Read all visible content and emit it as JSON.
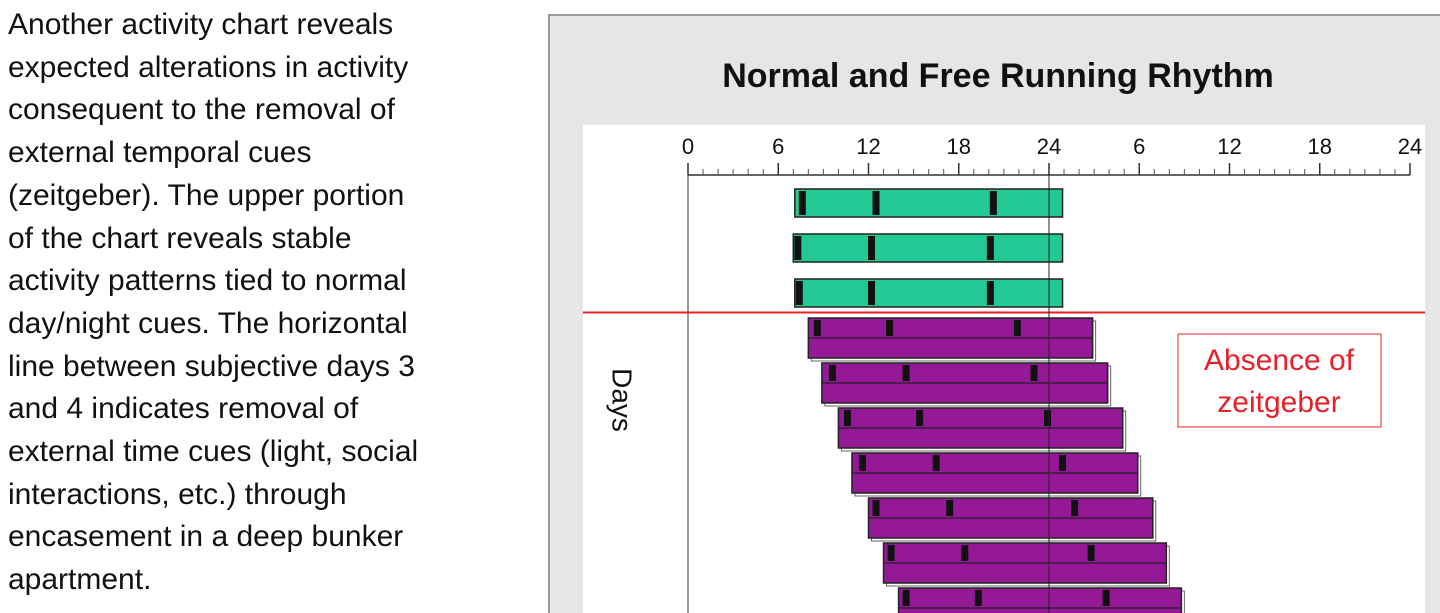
{
  "text": {
    "lines": [
      "Another activity chart reveals",
      "expected alterations in activity",
      "consequent to the removal of",
      "external temporal cues",
      "(zeitgeber). The upper portion",
      "of the chart reveals stable",
      "activity patterns tied to normal",
      "day/night cues. The horizontal",
      "line between subjective days 3",
      "and 4 indicates removal of",
      "external time cues (light, social",
      "interactions, etc.) through",
      "encasement in a deep bunker",
      "apartment."
    ]
  },
  "chart_data": {
    "type": "actogram",
    "title": "Normal and Free Running Rhythm",
    "y_label": "Days",
    "xlim": [
      0,
      48
    ],
    "xticks": [
      0,
      6,
      12,
      18,
      24,
      {
        "value": 30,
        "label": "6"
      },
      {
        "value": 36,
        "label": "12"
      },
      {
        "value": 42,
        "label": "18"
      },
      {
        "value": 48,
        "label": "24"
      }
    ],
    "xticks_minor": [
      1,
      2,
      3,
      4,
      5,
      7,
      8,
      9,
      10,
      11,
      13,
      14,
      15,
      16,
      17,
      19,
      20,
      21,
      22,
      23,
      25,
      26,
      27,
      28,
      29,
      31,
      32,
      33,
      34,
      35,
      37,
      38,
      39,
      40,
      41,
      43,
      44,
      45,
      46,
      47
    ],
    "reference_x": 24,
    "zeitgeber_removed_after_day": 3,
    "annotation": {
      "lines": [
        "Absence of",
        "zeitgeber"
      ],
      "color": "#e8202a"
    },
    "normal_rhythm": {
      "color": "#22c995",
      "days": [
        {
          "start": 7.1,
          "end": 24.9,
          "marks": [
            7.6,
            12.5,
            20.3
          ]
        },
        {
          "start": 7.0,
          "end": 24.9,
          "marks": [
            7.3,
            12.2,
            20.1
          ]
        },
        {
          "start": 7.1,
          "end": 24.9,
          "marks": [
            7.4,
            12.2,
            20.1
          ]
        }
      ]
    },
    "free_running": {
      "color": "#951896",
      "days": [
        {
          "start": 8.0,
          "end": 26.9,
          "marks": [
            8.6,
            13.4,
            21.9
          ]
        },
        {
          "start": 8.9,
          "end": 27.9,
          "marks": [
            9.6,
            14.5,
            23.0
          ]
        },
        {
          "start": 10.0,
          "end": 28.9,
          "marks": [
            10.6,
            15.4,
            23.9
          ]
        },
        {
          "start": 10.9,
          "end": 29.9,
          "marks": [
            11.6,
            16.5,
            24.9
          ]
        },
        {
          "start": 12.0,
          "end": 30.9,
          "marks": [
            12.5,
            17.4,
            25.7
          ]
        },
        {
          "start": 13.0,
          "end": 31.8,
          "marks": [
            13.5,
            18.4,
            26.8
          ]
        },
        {
          "start": 14.0,
          "end": 32.8,
          "marks": [
            14.5,
            19.3,
            27.8
          ]
        }
      ]
    }
  }
}
